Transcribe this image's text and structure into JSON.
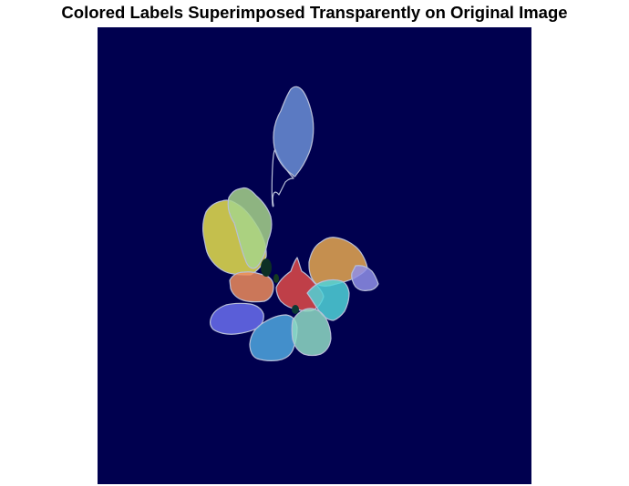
{
  "figure": {
    "title": "Colored Labels Superimposed Transparently on Original Image"
  },
  "image": {
    "background_color": "#00004F",
    "overlay_opacity": 0.55,
    "leaf_outline_color": "#b8bfd8",
    "labels": [
      {
        "id": 1,
        "color": "#6b8fd6"
      },
      {
        "id": 2,
        "color": "#e6e04c"
      },
      {
        "id": 3,
        "color": "#a7d48a"
      },
      {
        "id": 4,
        "color": "#e8a84f"
      },
      {
        "id": 5,
        "color": "#8f8fe8"
      },
      {
        "id": 6,
        "color": "#ef8c5a"
      },
      {
        "id": 7,
        "color": "#e04a46"
      },
      {
        "id": 8,
        "color": "#4fd4d8"
      },
      {
        "id": 9,
        "color": "#6a6ef0"
      },
      {
        "id": 10,
        "color": "#4fa8e0"
      },
      {
        "id": 11,
        "color": "#8fdcc4"
      }
    ]
  }
}
